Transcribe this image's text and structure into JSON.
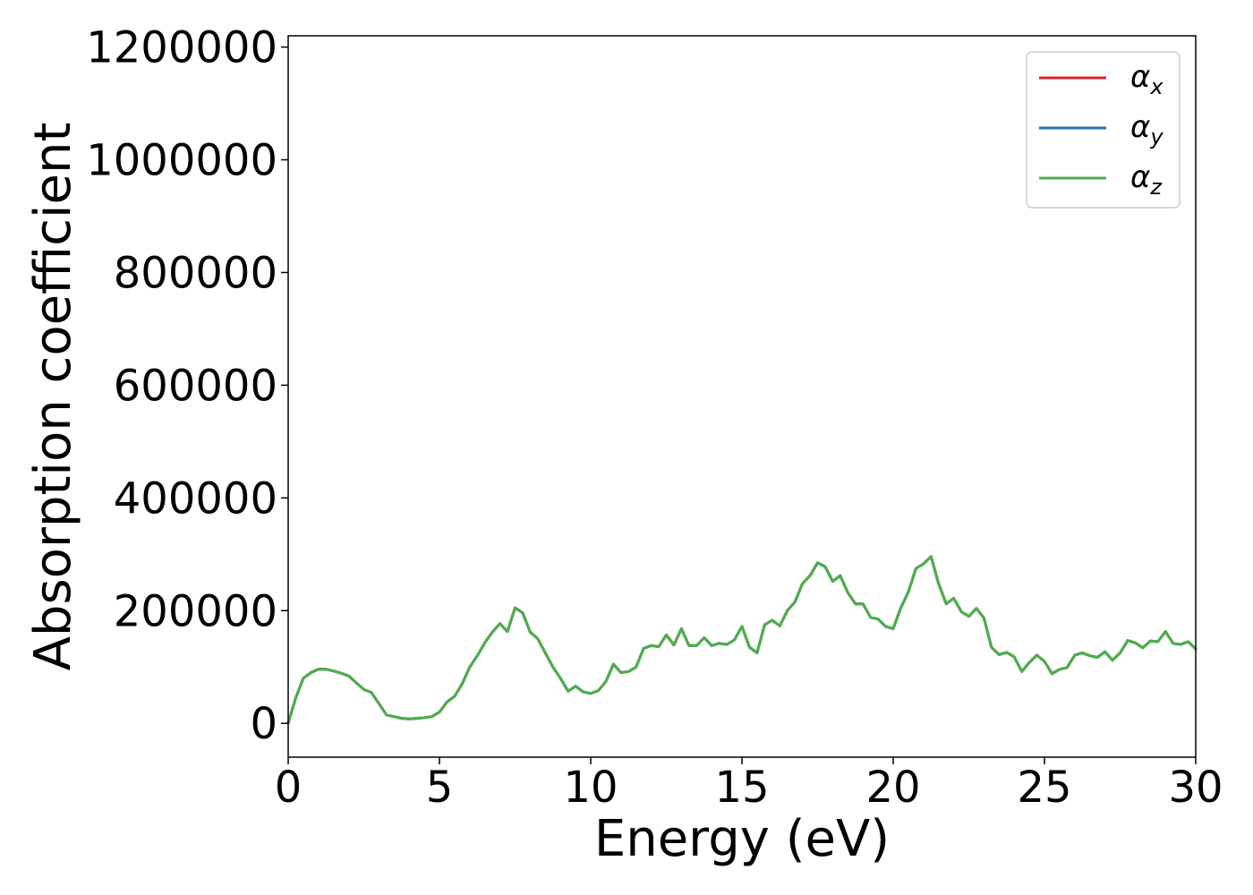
{
  "chart_data": {
    "type": "line",
    "title": "",
    "xlabel": "Energy (eV)",
    "ylabel": "Absorption coefficient",
    "xlim": [
      0,
      30
    ],
    "ylim": [
      -60000,
      1220000
    ],
    "xticks": [
      0,
      5,
      10,
      15,
      20,
      25,
      30
    ],
    "xtick_labels": [
      "0",
      "5",
      "10",
      "15",
      "20",
      "25",
      "30"
    ],
    "yticks": [
      0,
      200000,
      400000,
      600000,
      800000,
      1000000,
      1200000
    ],
    "ytick_labels": [
      "0",
      "200000",
      "400000",
      "600000",
      "800000",
      "1000000",
      "1200000"
    ],
    "grid": false,
    "legend_position": "top-right",
    "x": [
      0,
      0.25,
      0.5,
      0.75,
      1,
      1.25,
      1.5,
      1.75,
      2,
      2.25,
      2.5,
      2.75,
      3,
      3.25,
      3.5,
      3.75,
      4,
      4.25,
      4.5,
      4.75,
      5,
      5.25,
      5.5,
      5.75,
      6,
      6.25,
      6.5,
      6.75,
      7,
      7.25,
      7.5,
      7.75,
      8,
      8.25,
      8.5,
      8.75,
      9,
      9.25,
      9.5,
      9.75,
      10,
      10.25,
      10.5,
      10.75,
      11,
      11.25,
      11.5,
      11.75,
      12,
      12.25,
      12.5,
      12.75,
      13,
      13.25,
      13.5,
      13.75,
      14,
      14.25,
      14.5,
      14.75,
      15,
      15.25,
      15.5,
      15.75,
      16,
      16.25,
      16.5,
      16.75,
      17,
      17.25,
      17.5,
      17.75,
      18,
      18.25,
      18.5,
      18.75,
      19,
      19.25,
      19.5,
      19.75,
      20,
      20.25,
      20.5,
      20.75,
      21,
      21.25,
      21.5,
      21.75,
      22,
      22.25,
      22.5,
      22.75,
      23,
      23.25,
      23.5,
      23.75,
      24,
      24.25,
      24.5,
      24.75,
      25,
      25.25,
      25.5,
      25.75,
      26,
      26.25,
      26.5,
      26.75,
      27,
      27.25,
      27.5,
      27.75,
      28,
      28.25,
      28.5,
      28.75,
      29,
      29.25,
      29.5,
      29.75,
      30
    ],
    "series": [
      {
        "name": "αx",
        "subscript": "x",
        "color": "#d62728",
        "values": [
          0,
          45000,
          80000,
          90000,
          96000,
          96000,
          93000,
          89000,
          84000,
          72000,
          60000,
          55000,
          35000,
          15000,
          12000,
          9000,
          8000,
          9000,
          10000,
          12000,
          20000,
          38000,
          48000,
          70000,
          100000,
          120000,
          143000,
          162000,
          177000,
          163000,
          205000,
          196000,
          162000,
          150000,
          125000,
          100000,
          80000,
          57000,
          66000,
          56000,
          53000,
          58000,
          74000,
          105000,
          90000,
          92000,
          100000,
          133000,
          138000,
          136000,
          157000,
          139000,
          168000,
          138000,
          138000,
          152000,
          138000,
          142000,
          140000,
          148000,
          172000,
          135000,
          125000,
          175000,
          183000,
          173000,
          200000,
          215000,
          248000,
          262000,
          285000,
          278000,
          252000,
          262000,
          232000,
          212000,
          212000,
          188000,
          185000,
          172000,
          168000,
          205000,
          233000,
          275000,
          283000,
          296000,
          248000,
          212000,
          222000,
          198000,
          190000,
          204000,
          187000,
          135000,
          122000,
          126000,
          118000,
          92000,
          108000,
          121000,
          110000,
          88000,
          96000,
          99000,
          121000,
          125000,
          120000,
          117000,
          127000,
          112000,
          125000,
          147000,
          143000,
          134000,
          146000,
          145000,
          163000,
          142000,
          140000,
          145000,
          132000
        ]
      },
      {
        "name": "αy",
        "subscript": "y",
        "color": "#1f77b4",
        "values": [
          0,
          45000,
          80000,
          90000,
          96000,
          96000,
          93000,
          89000,
          84000,
          72000,
          60000,
          55000,
          35000,
          15000,
          12000,
          9000,
          8000,
          9000,
          10000,
          12000,
          20000,
          38000,
          48000,
          70000,
          100000,
          120000,
          143000,
          162000,
          177000,
          163000,
          205000,
          196000,
          162000,
          150000,
          125000,
          100000,
          80000,
          57000,
          66000,
          56000,
          53000,
          58000,
          74000,
          105000,
          90000,
          92000,
          100000,
          133000,
          138000,
          136000,
          157000,
          139000,
          168000,
          138000,
          138000,
          152000,
          138000,
          142000,
          140000,
          148000,
          172000,
          135000,
          125000,
          175000,
          183000,
          173000,
          200000,
          215000,
          248000,
          262000,
          285000,
          278000,
          252000,
          262000,
          232000,
          212000,
          212000,
          188000,
          185000,
          172000,
          168000,
          205000,
          233000,
          275000,
          283000,
          296000,
          248000,
          212000,
          222000,
          198000,
          190000,
          204000,
          187000,
          135000,
          122000,
          126000,
          118000,
          92000,
          108000,
          121000,
          110000,
          88000,
          96000,
          99000,
          121000,
          125000,
          120000,
          117000,
          127000,
          112000,
          125000,
          147000,
          143000,
          134000,
          146000,
          145000,
          163000,
          142000,
          140000,
          145000,
          132000
        ]
      },
      {
        "name": "αz",
        "subscript": "z",
        "color": "#4daf4a",
        "values": [
          0,
          45000,
          80000,
          90000,
          96000,
          96000,
          93000,
          89000,
          84000,
          72000,
          60000,
          55000,
          35000,
          15000,
          12000,
          9000,
          8000,
          9000,
          10000,
          12000,
          20000,
          38000,
          48000,
          70000,
          100000,
          120000,
          143000,
          162000,
          177000,
          163000,
          205000,
          196000,
          162000,
          150000,
          125000,
          100000,
          80000,
          57000,
          66000,
          56000,
          53000,
          58000,
          74000,
          105000,
          90000,
          92000,
          100000,
          133000,
          138000,
          136000,
          157000,
          139000,
          168000,
          138000,
          138000,
          152000,
          138000,
          142000,
          140000,
          148000,
          172000,
          135000,
          125000,
          175000,
          183000,
          173000,
          200000,
          215000,
          248000,
          262000,
          285000,
          278000,
          252000,
          262000,
          232000,
          212000,
          212000,
          188000,
          185000,
          172000,
          168000,
          205000,
          233000,
          275000,
          283000,
          296000,
          248000,
          212000,
          222000,
          198000,
          190000,
          204000,
          187000,
          135000,
          122000,
          126000,
          118000,
          92000,
          108000,
          121000,
          110000,
          88000,
          96000,
          99000,
          121000,
          125000,
          120000,
          117000,
          127000,
          112000,
          125000,
          147000,
          143000,
          134000,
          146000,
          145000,
          163000,
          142000,
          140000,
          145000,
          132000
        ]
      }
    ]
  },
  "legend": {
    "base_glyph": "α"
  }
}
